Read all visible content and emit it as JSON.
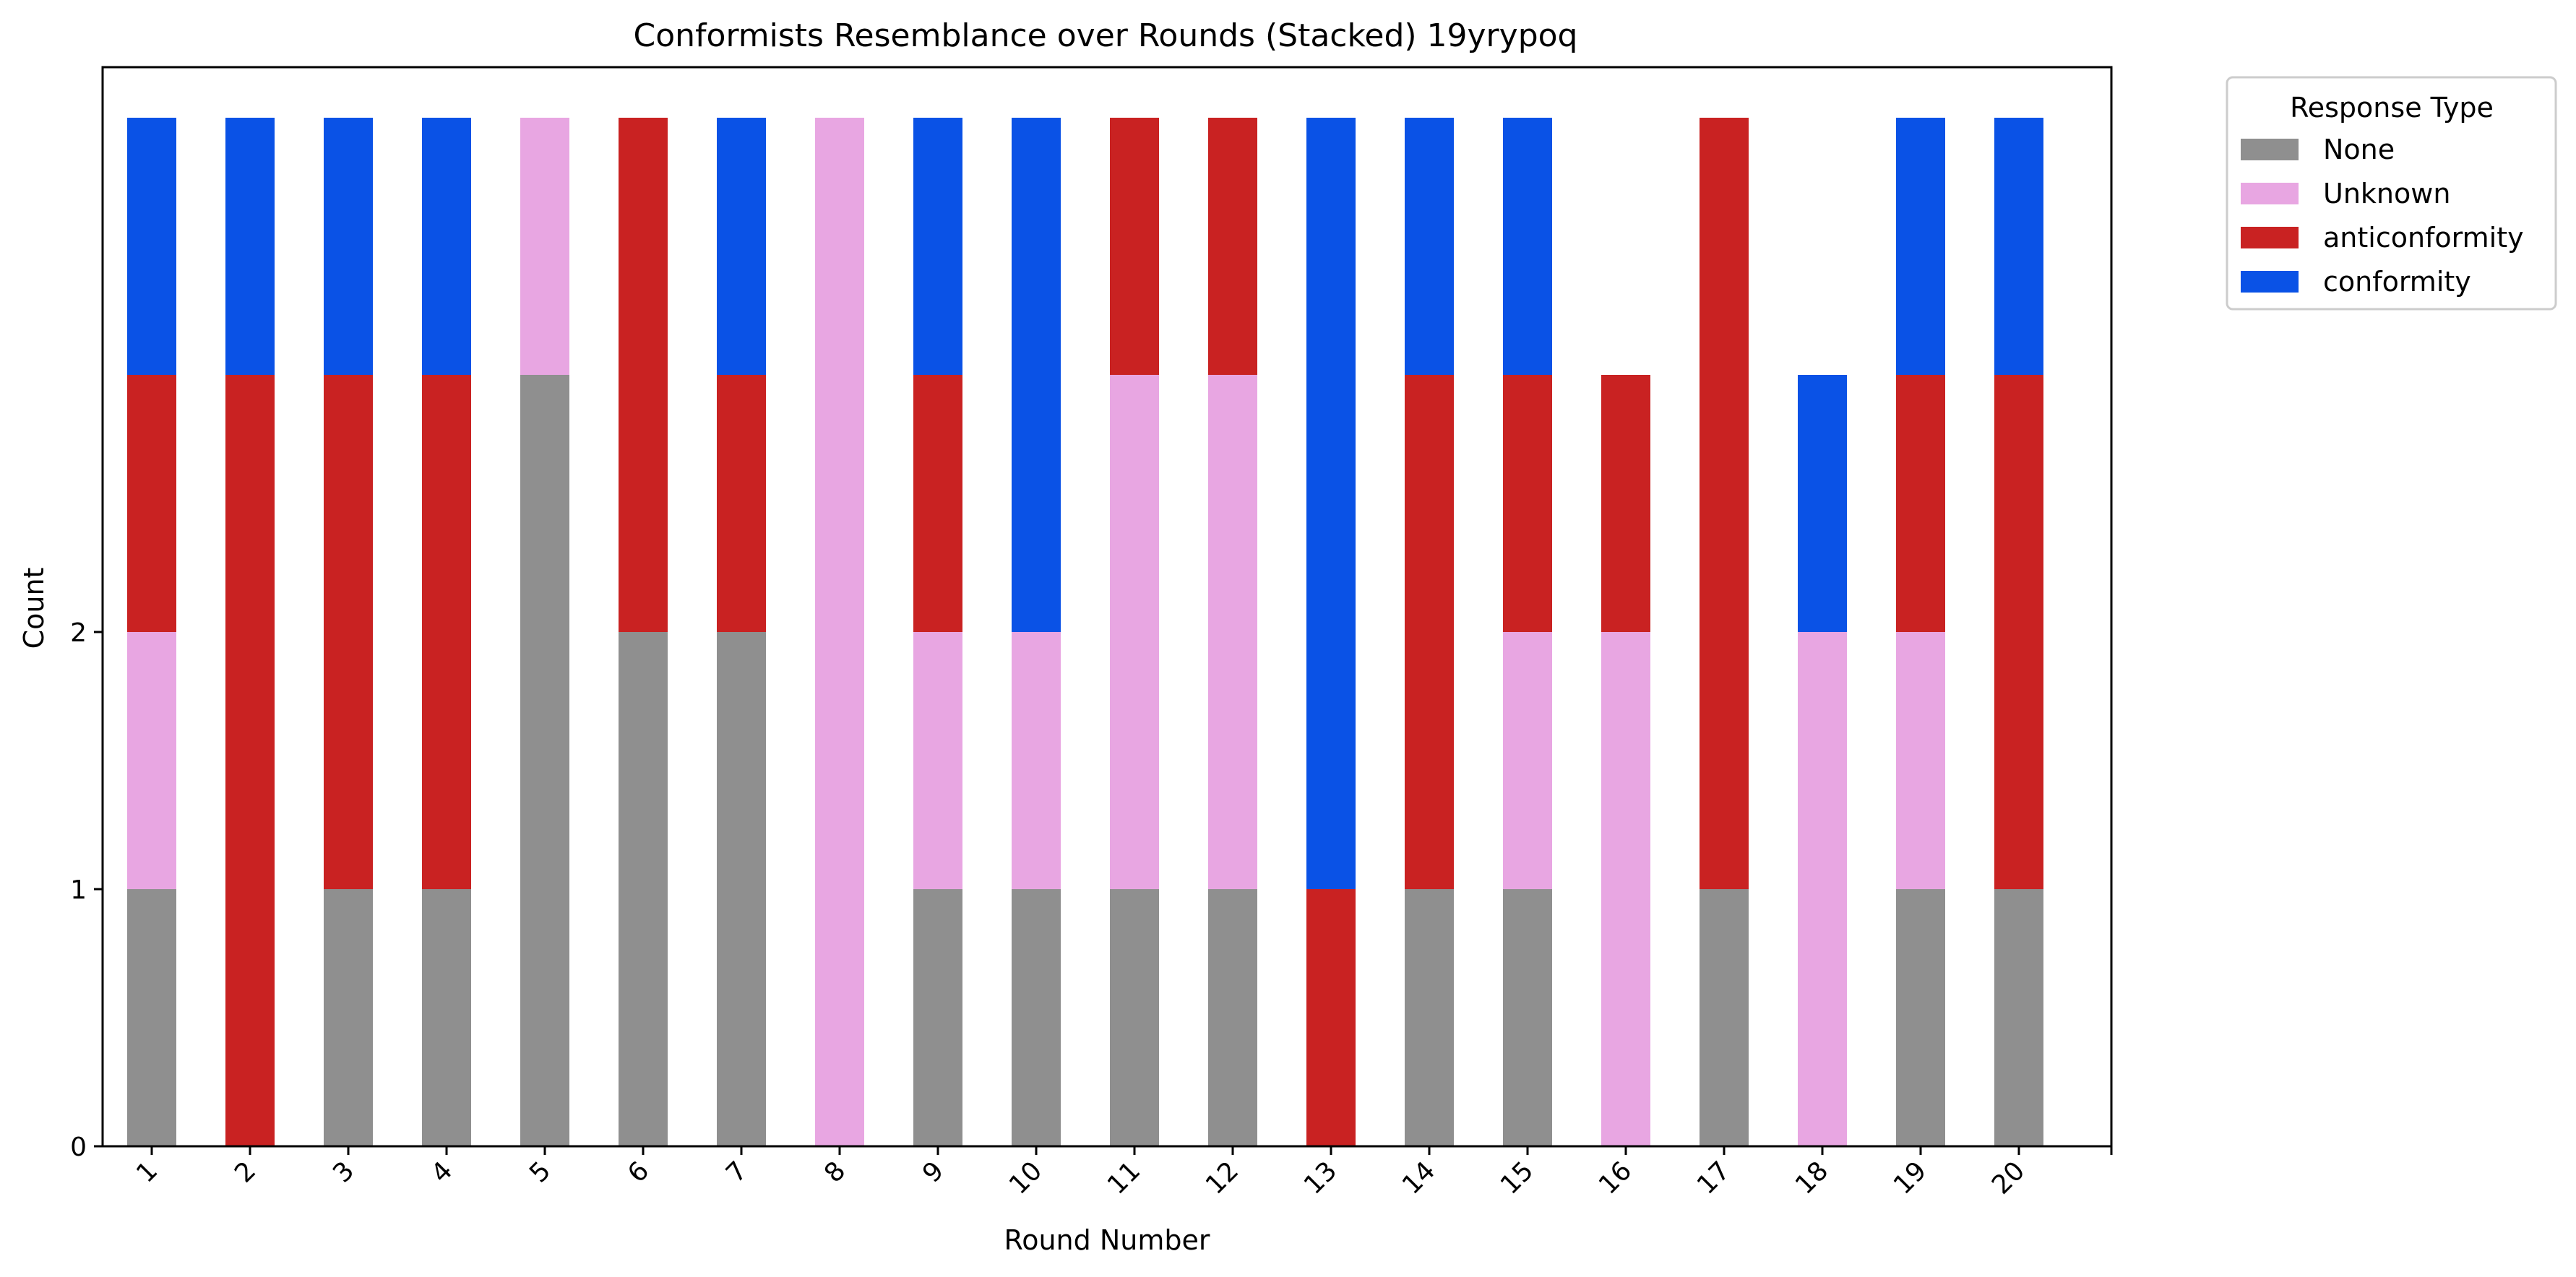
{
  "chart_data": {
    "type": "bar",
    "stacked": true,
    "title": "Conformists Resemblance over Rounds (Stacked) 19yrypoq",
    "xlabel": "Round Number",
    "ylabel": "Count",
    "categories": [
      "1",
      "2",
      "3",
      "4",
      "5",
      "6",
      "7",
      "8",
      "9",
      "10",
      "11",
      "12",
      "13",
      "14",
      "15",
      "16",
      "17",
      "18",
      "19",
      "20"
    ],
    "y_ticks": [
      0,
      1,
      2
    ],
    "ylim": [
      0,
      4.2
    ],
    "grid": false,
    "legend": {
      "title": "Response Type",
      "placement": "outside-top-right"
    },
    "series": [
      {
        "name": "None",
        "color": "#8f8f8f",
        "values": [
          1,
          0,
          1,
          1,
          3,
          2,
          2,
          0,
          1,
          1,
          1,
          1,
          0,
          1,
          1,
          0,
          1,
          0,
          1,
          1
        ]
      },
      {
        "name": "Unknown",
        "color": "#e8a6e2",
        "values": [
          1,
          0,
          0,
          0,
          1,
          0,
          0,
          4,
          1,
          1,
          2,
          2,
          0,
          0,
          1,
          2,
          0,
          2,
          1,
          0
        ]
      },
      {
        "name": "anticonformity",
        "color": "#c92222",
        "values": [
          1,
          3,
          2,
          2,
          0,
          2,
          1,
          0,
          1,
          0,
          1,
          1,
          1,
          2,
          1,
          1,
          3,
          0,
          1,
          2
        ]
      },
      {
        "name": "conformity",
        "color": "#0a52e6",
        "values": [
          1,
          1,
          1,
          1,
          0,
          0,
          1,
          0,
          1,
          2,
          0,
          0,
          3,
          1,
          1,
          0,
          0,
          1,
          1,
          1
        ]
      }
    ]
  }
}
